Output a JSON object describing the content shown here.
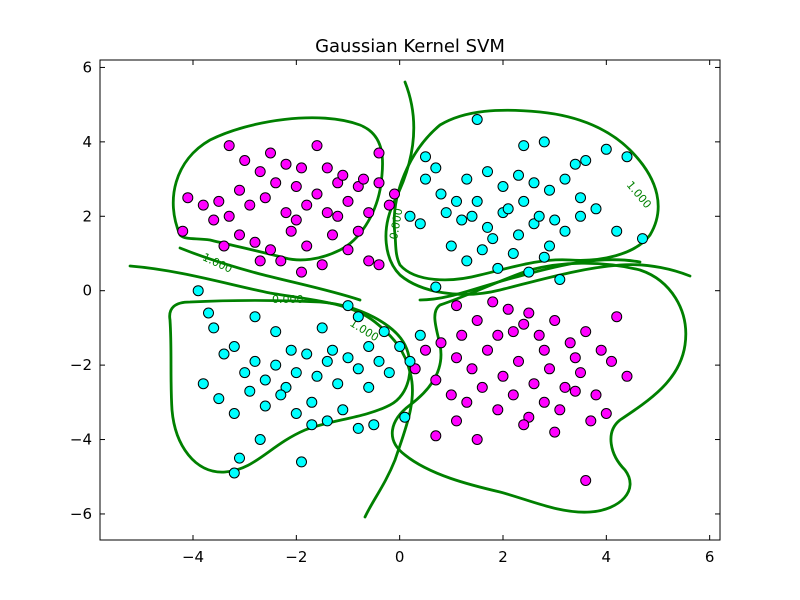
{
  "chart_data": {
    "type": "scatter",
    "title": "Gaussian Kernel SVM",
    "xlabel": "",
    "ylabel": "",
    "xlim": [
      -5.8,
      6.2
    ],
    "ylim": [
      -6.7,
      6.2
    ],
    "xticks": [
      -4,
      -2,
      0,
      2,
      4,
      6
    ],
    "yticks": [
      -6,
      -4,
      -2,
      0,
      2,
      4,
      6
    ],
    "grid": false,
    "colors": {
      "magenta": "#ff00ff",
      "cyan": "#00ffff",
      "contour": "#008000"
    },
    "contour_labels": [
      "1.000",
      "-1.000",
      "0.000",
      "0.000",
      "1.000"
    ],
    "series": [
      {
        "color": "#ff00ff",
        "points": [
          [
            -4.2,
            1.6
          ],
          [
            -4.1,
            2.5
          ],
          [
            -3.8,
            2.3
          ],
          [
            -3.5,
            2.4
          ],
          [
            -3.3,
            2.0
          ],
          [
            -3.1,
            2.7
          ],
          [
            -2.9,
            2.3
          ],
          [
            -2.6,
            2.5
          ],
          [
            -2.4,
            2.9
          ],
          [
            -2.2,
            2.1
          ],
          [
            -2.0,
            2.8
          ],
          [
            -1.8,
            2.3
          ],
          [
            -1.6,
            2.6
          ],
          [
            -1.4,
            2.1
          ],
          [
            -1.2,
            2.9
          ],
          [
            -1.0,
            2.4
          ],
          [
            -0.8,
            2.8
          ],
          [
            -0.6,
            2.1
          ],
          [
            -0.4,
            3.7
          ],
          [
            -0.2,
            2.3
          ],
          [
            -3.3,
            3.9
          ],
          [
            -3.0,
            3.5
          ],
          [
            -2.7,
            3.2
          ],
          [
            -2.5,
            3.7
          ],
          [
            -2.2,
            3.4
          ],
          [
            -1.9,
            3.3
          ],
          [
            -1.6,
            3.9
          ],
          [
            -1.4,
            3.3
          ],
          [
            -1.1,
            3.1
          ],
          [
            -0.7,
            3.0
          ],
          [
            -3.4,
            1.2
          ],
          [
            -3.1,
            1.5
          ],
          [
            -2.8,
            1.3
          ],
          [
            -2.5,
            1.1
          ],
          [
            -2.3,
            0.8
          ],
          [
            -2.1,
            1.6
          ],
          [
            -1.8,
            1.2
          ],
          [
            -1.5,
            0.7
          ],
          [
            -1.3,
            1.5
          ],
          [
            -1.0,
            1.1
          ],
          [
            -0.8,
            1.6
          ],
          [
            -0.4,
            0.7
          ],
          [
            -0.1,
            2.6
          ],
          [
            -2.7,
            0.8
          ],
          [
            -1.9,
            0.5
          ],
          [
            -0.6,
            0.8
          ],
          [
            -3.6,
            1.9
          ],
          [
            -2.0,
            1.9
          ],
          [
            -1.2,
            2.0
          ],
          [
            -0.4,
            2.9
          ],
          [
            1.1,
            -0.4
          ],
          [
            1.5,
            -0.8
          ],
          [
            1.8,
            -0.3
          ],
          [
            2.1,
            -0.5
          ],
          [
            2.4,
            -0.9
          ],
          [
            2.7,
            -1.2
          ],
          [
            3.0,
            -0.8
          ],
          [
            3.3,
            -1.4
          ],
          [
            3.6,
            -1.1
          ],
          [
            3.9,
            -1.6
          ],
          [
            4.2,
            -0.7
          ],
          [
            0.5,
            -1.6
          ],
          [
            0.8,
            -1.4
          ],
          [
            1.1,
            -1.8
          ],
          [
            1.4,
            -2.1
          ],
          [
            1.7,
            -1.6
          ],
          [
            2.0,
            -2.3
          ],
          [
            2.3,
            -1.9
          ],
          [
            2.6,
            -2.5
          ],
          [
            2.9,
            -2.1
          ],
          [
            3.2,
            -2.6
          ],
          [
            3.5,
            -2.2
          ],
          [
            3.8,
            -2.8
          ],
          [
            4.1,
            -1.9
          ],
          [
            4.4,
            -2.3
          ],
          [
            0.7,
            -2.4
          ],
          [
            1.0,
            -2.8
          ],
          [
            1.3,
            -3.0
          ],
          [
            1.6,
            -2.6
          ],
          [
            1.9,
            -3.2
          ],
          [
            2.2,
            -2.8
          ],
          [
            2.5,
            -3.4
          ],
          [
            2.8,
            -3.0
          ],
          [
            3.1,
            -3.2
          ],
          [
            3.4,
            -2.7
          ],
          [
            3.7,
            -3.5
          ],
          [
            4.0,
            -3.3
          ],
          [
            1.1,
            -3.5
          ],
          [
            1.5,
            -4.0
          ],
          [
            2.4,
            -3.6
          ],
          [
            3.0,
            -3.8
          ],
          [
            0.7,
            -3.9
          ],
          [
            3.6,
            -5.1
          ],
          [
            1.2,
            -1.2
          ],
          [
            2.2,
            -1.1
          ],
          [
            2.8,
            -1.6
          ],
          [
            3.4,
            -1.8
          ],
          [
            0.3,
            -2.1
          ],
          [
            1.9,
            -1.2
          ],
          [
            2.5,
            -0.6
          ]
        ]
      },
      {
        "color": "#00ffff",
        "points": [
          [
            1.5,
            4.6
          ],
          [
            2.4,
            3.9
          ],
          [
            2.8,
            4.0
          ],
          [
            3.4,
            3.4
          ],
          [
            3.6,
            3.5
          ],
          [
            4.0,
            3.8
          ],
          [
            4.4,
            3.6
          ],
          [
            1.3,
            3.0
          ],
          [
            1.7,
            3.2
          ],
          [
            2.0,
            2.8
          ],
          [
            2.3,
            3.1
          ],
          [
            2.6,
            2.9
          ],
          [
            2.9,
            2.7
          ],
          [
            3.2,
            3.0
          ],
          [
            3.5,
            2.5
          ],
          [
            3.8,
            2.2
          ],
          [
            4.2,
            1.6
          ],
          [
            4.7,
            1.4
          ],
          [
            0.5,
            3.0
          ],
          [
            0.8,
            2.6
          ],
          [
            1.1,
            2.4
          ],
          [
            1.4,
            2.0
          ],
          [
            1.7,
            1.7
          ],
          [
            2.0,
            2.1
          ],
          [
            2.3,
            1.5
          ],
          [
            2.6,
            1.8
          ],
          [
            2.9,
            1.2
          ],
          [
            3.2,
            1.6
          ],
          [
            3.5,
            2.0
          ],
          [
            1.0,
            1.2
          ],
          [
            1.3,
            0.8
          ],
          [
            1.6,
            1.1
          ],
          [
            1.9,
            0.6
          ],
          [
            2.2,
            1.0
          ],
          [
            2.5,
            0.5
          ],
          [
            2.8,
            0.9
          ],
          [
            3.1,
            0.3
          ],
          [
            0.7,
            0.1
          ],
          [
            1.2,
            1.9
          ],
          [
            1.5,
            2.4
          ],
          [
            0.5,
            3.6
          ],
          [
            0.7,
            3.3
          ],
          [
            2.1,
            2.2
          ],
          [
            2.4,
            2.4
          ],
          [
            2.7,
            2.0
          ],
          [
            3.0,
            1.9
          ],
          [
            1.8,
            1.4
          ],
          [
            0.2,
            2.0
          ],
          [
            0.4,
            1.8
          ],
          [
            0.9,
            2.1
          ],
          [
            -3.9,
            0.0
          ],
          [
            -3.7,
            -0.6
          ],
          [
            -3.6,
            -1.0
          ],
          [
            -3.4,
            -1.7
          ],
          [
            -3.2,
            -1.5
          ],
          [
            -3.0,
            -2.2
          ],
          [
            -2.8,
            -1.9
          ],
          [
            -2.6,
            -2.4
          ],
          [
            -2.4,
            -2.0
          ],
          [
            -2.2,
            -2.6
          ],
          [
            -2.0,
            -2.2
          ],
          [
            -1.8,
            -1.7
          ],
          [
            -1.6,
            -2.3
          ],
          [
            -1.4,
            -1.9
          ],
          [
            -1.2,
            -2.5
          ],
          [
            -1.0,
            -1.8
          ],
          [
            -0.8,
            -2.1
          ],
          [
            -0.6,
            -2.6
          ],
          [
            -0.4,
            -1.9
          ],
          [
            -0.2,
            -2.2
          ],
          [
            -3.8,
            -2.5
          ],
          [
            -3.5,
            -2.9
          ],
          [
            -3.2,
            -3.3
          ],
          [
            -2.9,
            -2.7
          ],
          [
            -2.6,
            -3.1
          ],
          [
            -2.3,
            -2.8
          ],
          [
            -2.0,
            -3.3
          ],
          [
            -1.7,
            -3.0
          ],
          [
            -1.4,
            -3.5
          ],
          [
            -1.1,
            -3.2
          ],
          [
            -0.8,
            -3.7
          ],
          [
            -0.5,
            -3.6
          ],
          [
            -3.1,
            -4.5
          ],
          [
            -3.2,
            -4.9
          ],
          [
            -2.7,
            -4.0
          ],
          [
            -1.9,
            -4.6
          ],
          [
            -1.7,
            -3.6
          ],
          [
            -0.8,
            -0.7
          ],
          [
            -1.0,
            -0.4
          ],
          [
            -0.3,
            -1.1
          ],
          [
            0.0,
            -1.5
          ],
          [
            0.2,
            -1.9
          ],
          [
            0.4,
            -1.2
          ],
          [
            0.1,
            -3.4
          ],
          [
            -0.6,
            -1.5
          ],
          [
            -1.3,
            -1.6
          ],
          [
            -2.1,
            -1.6
          ],
          [
            -2.8,
            -0.7
          ],
          [
            -1.5,
            -1.0
          ],
          [
            -2.4,
            -1.1
          ]
        ]
      }
    ]
  }
}
